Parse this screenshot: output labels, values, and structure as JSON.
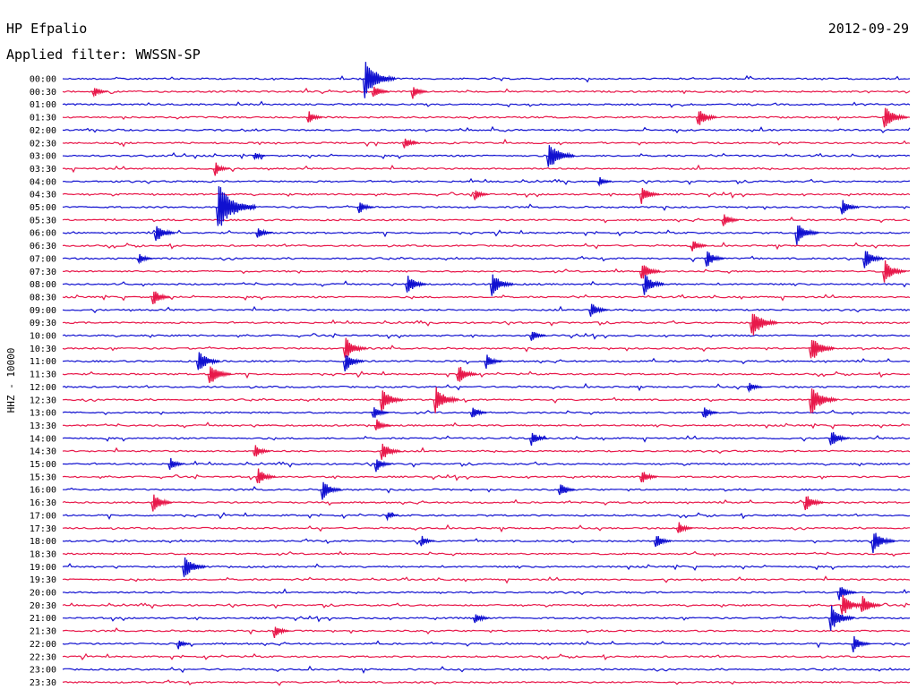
{
  "header": {
    "station": "HP Efpalio",
    "date": "2012-09-29",
    "filter": "Applied filter: WWSSN-SP"
  },
  "axis": {
    "channel_label": "HHZ - 10000"
  },
  "colors": {
    "even_trace": "#1010d0",
    "odd_trace": "#e8184a",
    "background": "#ffffff",
    "text": "#000000"
  },
  "chart_data": {
    "type": "line",
    "title": "HP Efpalio",
    "date": "2012-09-29",
    "ylabel": "HHZ - 10000",
    "row_interval": "30 min",
    "rows": [
      "00:00",
      "00:30",
      "01:00",
      "01:30",
      "02:00",
      "02:30",
      "03:00",
      "03:30",
      "04:00",
      "04:30",
      "05:00",
      "05:30",
      "06:00",
      "06:30",
      "07:00",
      "07:30",
      "08:00",
      "08:30",
      "09:00",
      "09:30",
      "10:00",
      "10:30",
      "11:00",
      "11:30",
      "12:00",
      "12:30",
      "13:00",
      "13:30",
      "14:00",
      "14:30",
      "15:00",
      "15:30",
      "16:00",
      "16:30",
      "17:00",
      "17:30",
      "18:00",
      "18:30",
      "19:00",
      "19:30",
      "20:00",
      "20:30",
      "21:00",
      "21:30",
      "22:00",
      "22:30",
      "23:00",
      "23:30"
    ],
    "grid": false,
    "legend": "none",
    "events": [
      {
        "row": 0,
        "minute": 10.7,
        "amp": 22
      },
      {
        "row": 1,
        "minute": 1.1,
        "amp": 7
      },
      {
        "row": 1,
        "minute": 11.0,
        "amp": 9
      },
      {
        "row": 1,
        "minute": 12.4,
        "amp": 8
      },
      {
        "row": 3,
        "minute": 8.7,
        "amp": 8
      },
      {
        "row": 3,
        "minute": 22.5,
        "amp": 12
      },
      {
        "row": 3,
        "minute": 29.1,
        "amp": 15
      },
      {
        "row": 5,
        "minute": 12.1,
        "amp": 8
      },
      {
        "row": 6,
        "minute": 17.2,
        "amp": 18
      },
      {
        "row": 6,
        "minute": 6.8,
        "amp": 5
      },
      {
        "row": 7,
        "minute": 5.4,
        "amp": 8
      },
      {
        "row": 8,
        "minute": 19.0,
        "amp": 6
      },
      {
        "row": 9,
        "minute": 14.6,
        "amp": 7
      },
      {
        "row": 9,
        "minute": 20.5,
        "amp": 11
      },
      {
        "row": 10,
        "minute": 5.5,
        "amp": 28
      },
      {
        "row": 10,
        "minute": 10.5,
        "amp": 8
      },
      {
        "row": 10,
        "minute": 27.6,
        "amp": 10
      },
      {
        "row": 11,
        "minute": 23.4,
        "amp": 9
      },
      {
        "row": 12,
        "minute": 3.3,
        "amp": 12
      },
      {
        "row": 12,
        "minute": 6.9,
        "amp": 8
      },
      {
        "row": 12,
        "minute": 26.0,
        "amp": 14
      },
      {
        "row": 13,
        "minute": 22.3,
        "amp": 8
      },
      {
        "row": 14,
        "minute": 2.7,
        "amp": 7
      },
      {
        "row": 14,
        "minute": 22.8,
        "amp": 11
      },
      {
        "row": 14,
        "minute": 28.4,
        "amp": 12
      },
      {
        "row": 15,
        "minute": 20.5,
        "amp": 12
      },
      {
        "row": 15,
        "minute": 29.1,
        "amp": 14
      },
      {
        "row": 16,
        "minute": 12.2,
        "amp": 12
      },
      {
        "row": 16,
        "minute": 15.2,
        "amp": 14
      },
      {
        "row": 16,
        "minute": 20.6,
        "amp": 13
      },
      {
        "row": 17,
        "minute": 3.2,
        "amp": 10
      },
      {
        "row": 18,
        "minute": 18.7,
        "amp": 10
      },
      {
        "row": 19,
        "minute": 24.4,
        "amp": 18
      },
      {
        "row": 20,
        "minute": 16.6,
        "amp": 8
      },
      {
        "row": 21,
        "minute": 10.0,
        "amp": 14
      },
      {
        "row": 21,
        "minute": 26.5,
        "amp": 16
      },
      {
        "row": 22,
        "minute": 4.8,
        "amp": 14
      },
      {
        "row": 22,
        "minute": 10.0,
        "amp": 12
      },
      {
        "row": 22,
        "minute": 15.0,
        "amp": 9
      },
      {
        "row": 23,
        "minute": 5.2,
        "amp": 14
      },
      {
        "row": 23,
        "minute": 14.0,
        "amp": 12
      },
      {
        "row": 24,
        "minute": 24.3,
        "amp": 7
      },
      {
        "row": 25,
        "minute": 11.3,
        "amp": 14
      },
      {
        "row": 25,
        "minute": 13.2,
        "amp": 16
      },
      {
        "row": 25,
        "minute": 26.5,
        "amp": 18
      },
      {
        "row": 26,
        "minute": 11.0,
        "amp": 9
      },
      {
        "row": 26,
        "minute": 14.5,
        "amp": 8
      },
      {
        "row": 26,
        "minute": 22.7,
        "amp": 8
      },
      {
        "row": 27,
        "minute": 11.1,
        "amp": 8
      },
      {
        "row": 28,
        "minute": 16.6,
        "amp": 9
      },
      {
        "row": 28,
        "minute": 27.2,
        "amp": 11
      },
      {
        "row": 29,
        "minute": 6.8,
        "amp": 9
      },
      {
        "row": 29,
        "minute": 11.3,
        "amp": 12
      },
      {
        "row": 30,
        "minute": 3.8,
        "amp": 8
      },
      {
        "row": 30,
        "minute": 11.1,
        "amp": 9
      },
      {
        "row": 31,
        "minute": 6.9,
        "amp": 11
      },
      {
        "row": 31,
        "minute": 20.5,
        "amp": 9
      },
      {
        "row": 32,
        "minute": 9.2,
        "amp": 12
      },
      {
        "row": 32,
        "minute": 17.6,
        "amp": 9
      },
      {
        "row": 33,
        "minute": 3.2,
        "amp": 12
      },
      {
        "row": 33,
        "minute": 26.3,
        "amp": 11
      },
      {
        "row": 34,
        "minute": 11.5,
        "amp": 5
      },
      {
        "row": 35,
        "minute": 21.8,
        "amp": 8
      },
      {
        "row": 36,
        "minute": 12.7,
        "amp": 7
      },
      {
        "row": 36,
        "minute": 21.0,
        "amp": 9
      },
      {
        "row": 36,
        "minute": 28.7,
        "amp": 14
      },
      {
        "row": 38,
        "minute": 4.3,
        "amp": 14
      },
      {
        "row": 40,
        "minute": 27.5,
        "amp": 10
      },
      {
        "row": 41,
        "minute": 27.6,
        "amp": 14
      },
      {
        "row": 41,
        "minute": 28.3,
        "amp": 12
      },
      {
        "row": 42,
        "minute": 14.6,
        "amp": 8
      },
      {
        "row": 42,
        "minute": 27.2,
        "amp": 16
      },
      {
        "row": 43,
        "minute": 7.5,
        "amp": 8
      },
      {
        "row": 44,
        "minute": 4.1,
        "amp": 6
      },
      {
        "row": 44,
        "minute": 28.0,
        "amp": 10
      }
    ]
  }
}
